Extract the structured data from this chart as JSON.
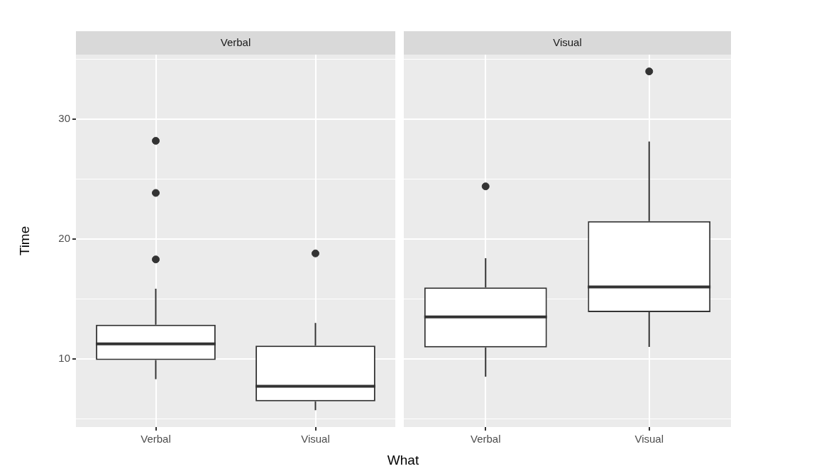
{
  "chart_data": [
    {
      "type": "box",
      "title": "Verbal",
      "xlabel": "What",
      "ylabel": "Time",
      "categories": [
        "Verbal",
        "Visual"
      ],
      "ylim": [
        4.3,
        35.4
      ],
      "yticks": [
        {
          "value": 5,
          "label": null
        },
        10,
        {
          "value": 15,
          "label": null
        },
        20,
        {
          "value": 25,
          "label": null
        },
        30,
        {
          "value": 35,
          "label": null
        }
      ],
      "grid": true,
      "series": [
        {
          "color": "#333333",
          "boxes": [
            {
              "low": 8.3,
              "q1": 9.9,
              "median": 11.25,
              "q3": 12.85,
              "high": 15.85,
              "outliers": [
                18.3,
                23.85,
                28.2
              ]
            },
            {
              "low": 5.7,
              "q1": 6.45,
              "median": 7.7,
              "q3": 11.1,
              "high": 13.0,
              "outliers": [
                18.8
              ]
            }
          ]
        }
      ]
    },
    {
      "type": "box",
      "title": "Visual",
      "categories": [
        "Verbal",
        "Visual"
      ],
      "ylim": [
        4.3,
        35.4
      ],
      "yticks": [
        {
          "value": 5,
          "label": null
        },
        10,
        {
          "value": 15,
          "label": null
        },
        20,
        {
          "value": 25,
          "label": null
        },
        30,
        {
          "value": 35,
          "label": null
        }
      ],
      "grid": true,
      "tick_labels": "x",
      "series": [
        {
          "color": "#333333",
          "boxes": [
            {
              "low": 8.5,
              "q1": 10.95,
              "median": 13.5,
              "q3": 15.95,
              "high": 18.4,
              "outliers": [
                24.4
              ]
            },
            {
              "low": 11.0,
              "q1": 13.9,
              "median": 16.0,
              "q3": 21.5,
              "high": 28.15,
              "outliers": [
                34.0
              ]
            }
          ]
        }
      ]
    }
  ]
}
